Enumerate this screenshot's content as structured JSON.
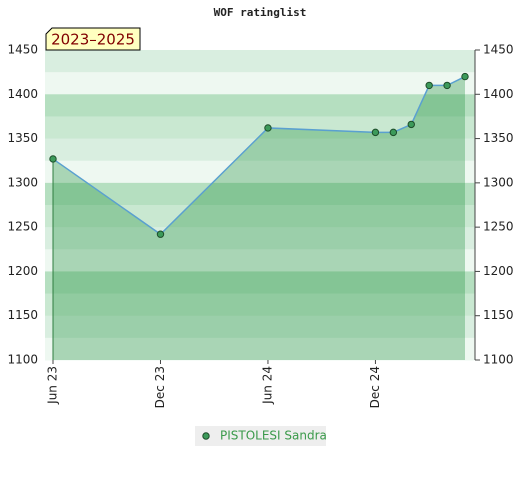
{
  "chart_data": {
    "type": "line",
    "title": "WOF ratinglist",
    "period_label": "2023–2025",
    "x": [
      "2023-06",
      "2023-12",
      "2024-06",
      "2024-12",
      "2025-01",
      "2025-02",
      "2025-03",
      "2025-04",
      "2025-05"
    ],
    "xticks": [
      {
        "value": "2023-06",
        "label": "Jun 23"
      },
      {
        "value": "2023-12",
        "label": "Dec 23"
      },
      {
        "value": "2024-06",
        "label": "Jun 24"
      },
      {
        "value": "2024-12",
        "label": "Dec 24"
      }
    ],
    "series": [
      {
        "name": "PISTOLESI Sandra",
        "color": "#5aa0d0",
        "values": [
          1327,
          1242,
          1362,
          1357,
          1357,
          1366,
          1410,
          1410,
          1420
        ]
      }
    ],
    "ylim": [
      1100,
      1450
    ],
    "yticks": [
      1100,
      1150,
      1200,
      1250,
      1300,
      1350,
      1400,
      1450
    ],
    "right_axis": true
  }
}
